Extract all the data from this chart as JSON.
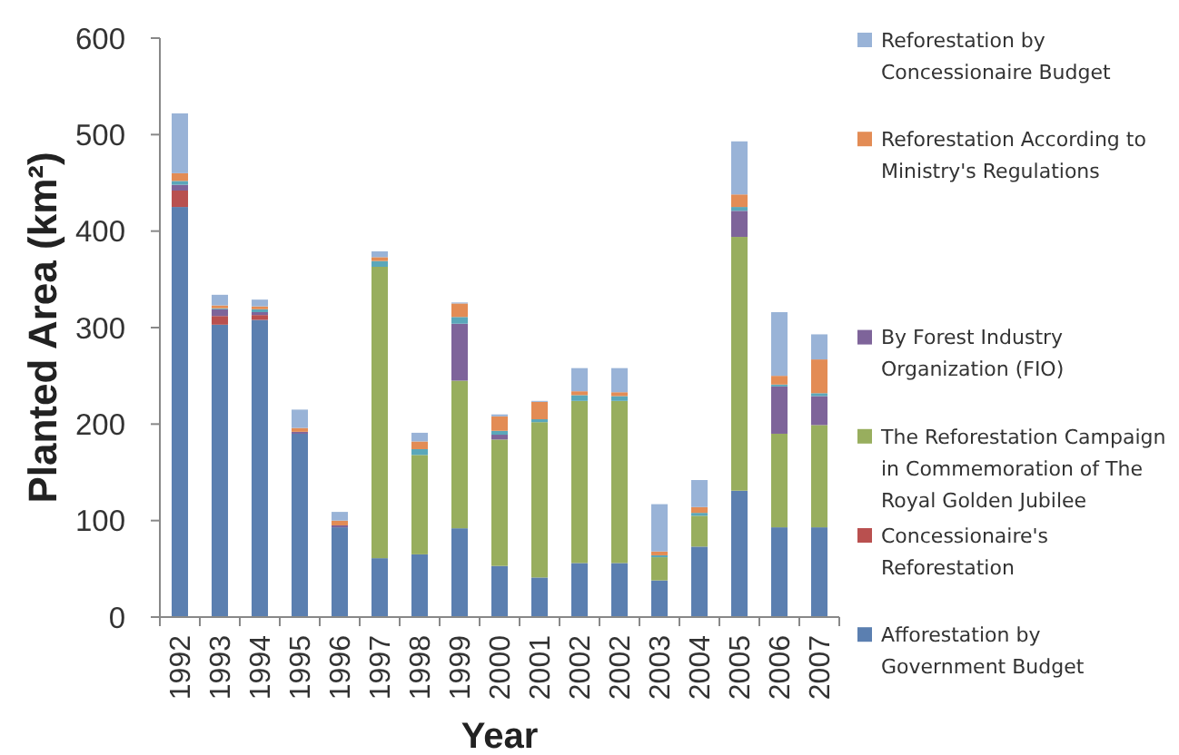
{
  "chart_data": {
    "type": "bar",
    "stacked": true,
    "xlabel": "Year",
    "ylabel": "Planted Area (km²)",
    "categories": [
      "1992",
      "1993",
      "1994",
      "1995",
      "1996",
      "1997",
      "1998",
      "1999",
      "2000",
      "2001",
      "2002",
      "2002",
      "2003",
      "2004",
      "2005",
      "2006",
      "2007"
    ],
    "ylim": [
      0,
      600
    ],
    "yticks": [
      0,
      100,
      200,
      300,
      400,
      500,
      600
    ],
    "legend": "right",
    "series": [
      {
        "name": "Afforestation by Government Budget",
        "color": "#5b7fb0",
        "values": [
          425,
          303,
          308,
          190,
          93,
          61,
          65,
          92,
          53,
          41,
          56,
          56,
          38,
          73,
          131,
          93,
          93
        ]
      },
      {
        "name": "Concessionaire's Reforestation",
        "color": "#b9504f",
        "values": [
          17,
          9,
          5,
          0,
          0,
          0,
          0,
          0,
          0,
          0,
          0,
          0,
          0,
          0,
          0,
          0,
          0
        ]
      },
      {
        "name": "The Reforestation Campaign in Commemoration of The Royal Golden Jubilee",
        "color": "#98ae5e",
        "values": [
          0,
          0,
          0,
          0,
          0,
          302,
          103,
          153,
          131,
          161,
          168,
          168,
          24,
          32,
          263,
          97,
          106
        ]
      },
      {
        "name": "By Forest Industry Organization (FIO)",
        "color": "#7e649a",
        "values": [
          6,
          7,
          3,
          2,
          2,
          0,
          0,
          59,
          5,
          0,
          0,
          0,
          0,
          0,
          27,
          49,
          30
        ]
      },
      {
        "color": "#5aa7ba",
        "values": [
          4,
          1,
          3,
          0,
          0,
          6,
          6,
          7,
          4,
          3,
          6,
          5,
          2,
          3,
          4,
          2,
          3
        ]
      },
      {
        "name": "Reforestation According to Ministry's Regulations",
        "color": "#e38c55",
        "values": [
          8,
          3,
          3,
          4,
          5,
          4,
          8,
          14,
          15,
          18,
          4,
          4,
          4,
          6,
          13,
          9,
          35
        ]
      },
      {
        "name": "Reforestation by Concessionaire Budget",
        "color": "#99b3d7",
        "values": [
          62,
          11,
          7,
          19,
          9,
          6,
          9,
          1,
          2,
          1,
          24,
          25,
          49,
          28,
          55,
          66,
          26
        ]
      }
    ]
  }
}
